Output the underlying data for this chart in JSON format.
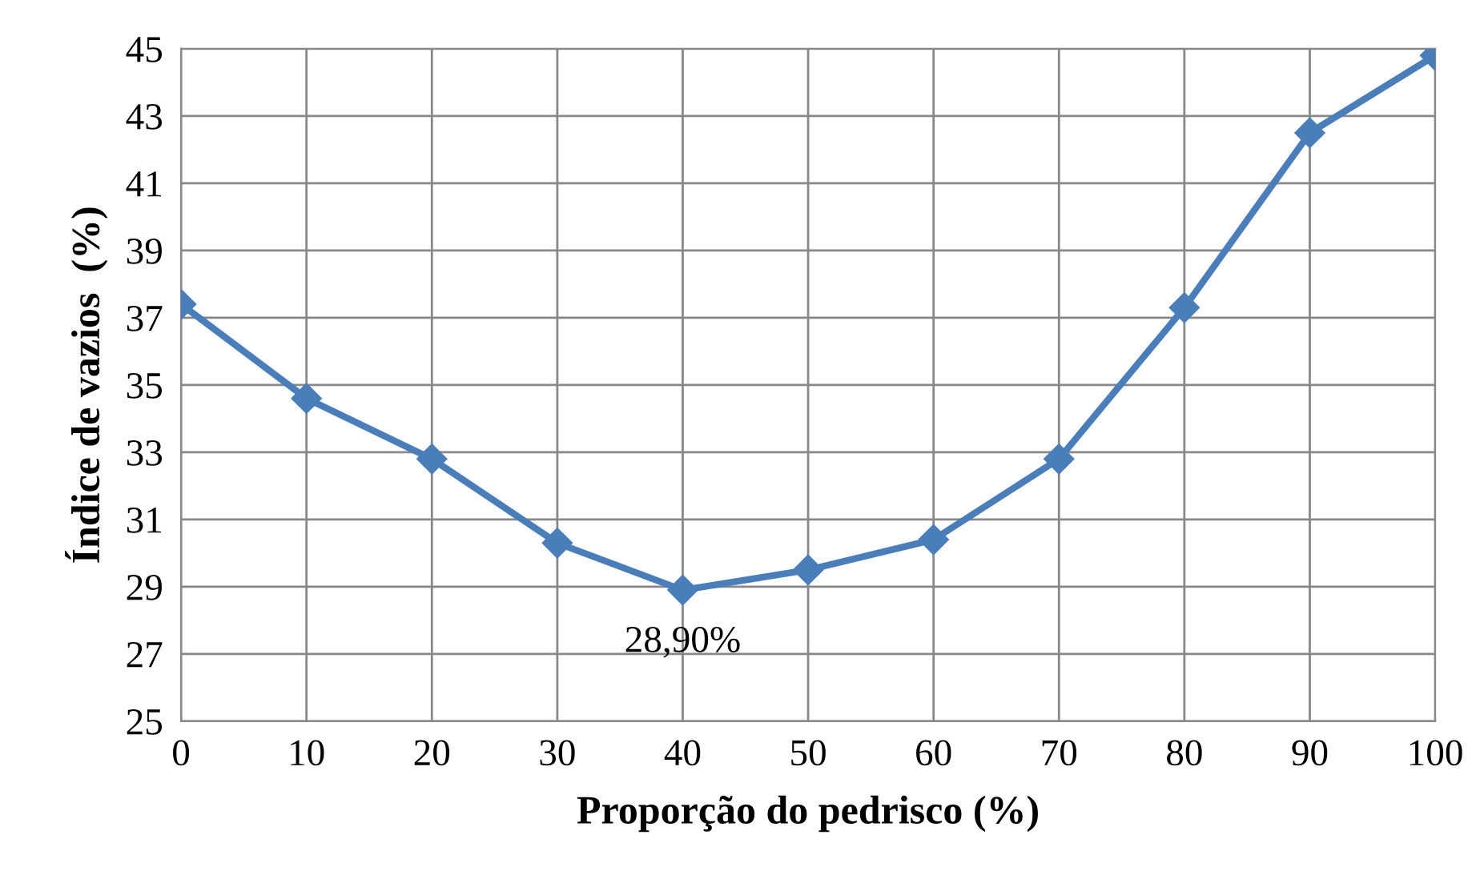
{
  "chart_data": {
    "type": "line",
    "xlabel": "Proporção do pedrisco (%)",
    "ylabel": "Índice de vazios  (%)",
    "x": [
      0,
      10,
      20,
      30,
      40,
      50,
      60,
      70,
      80,
      90,
      100
    ],
    "series": [
      {
        "color": "#4a7ebb",
        "values": [
          37.4,
          34.6,
          32.8,
          30.3,
          28.9,
          29.5,
          30.4,
          32.8,
          37.3,
          42.5,
          44.8
        ]
      }
    ],
    "xlim": [
      0,
      100
    ],
    "xticks": [
      0,
      10,
      20,
      30,
      40,
      50,
      60,
      70,
      80,
      90,
      100
    ],
    "ylim": [
      25,
      45
    ],
    "yticks": [
      25,
      27,
      29,
      31,
      33,
      35,
      37,
      39,
      41,
      43,
      45
    ],
    "grid": true,
    "marker": "diamond",
    "line_style": "solid",
    "legend": false,
    "annotations": [
      {
        "text": "28,90%",
        "x": 40,
        "y": 28.9
      }
    ]
  }
}
